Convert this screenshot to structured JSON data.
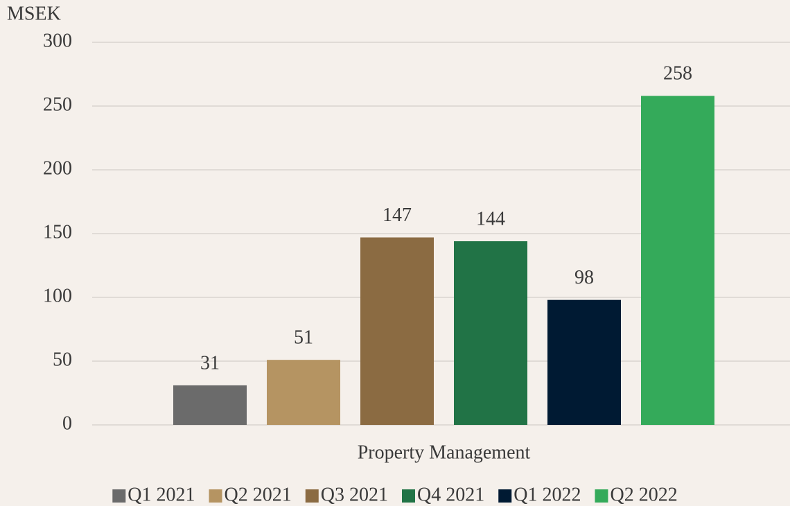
{
  "chart_data": {
    "type": "bar",
    "y_label": "MSEK",
    "x_label": "Property Management",
    "categories": [
      "Property Management"
    ],
    "series": [
      {
        "name": "Q1 2021",
        "color": "#6b6b6b",
        "values": [
          31
        ]
      },
      {
        "name": "Q2 2021",
        "color": "#b59462",
        "values": [
          51
        ]
      },
      {
        "name": "Q3 2021",
        "color": "#8b6b42",
        "values": [
          147
        ]
      },
      {
        "name": "Q4 2021",
        "color": "#217346",
        "values": [
          144
        ]
      },
      {
        "name": "Q1 2022",
        "color": "#001a33",
        "values": [
          98
        ]
      },
      {
        "name": "Q2 2022",
        "color": "#34aa5a",
        "values": [
          258
        ]
      }
    ],
    "ylim": [
      0,
      300
    ],
    "yticks": [
      0,
      50,
      100,
      150,
      200,
      250,
      300
    ],
    "grid": true,
    "legend": "bottom"
  }
}
